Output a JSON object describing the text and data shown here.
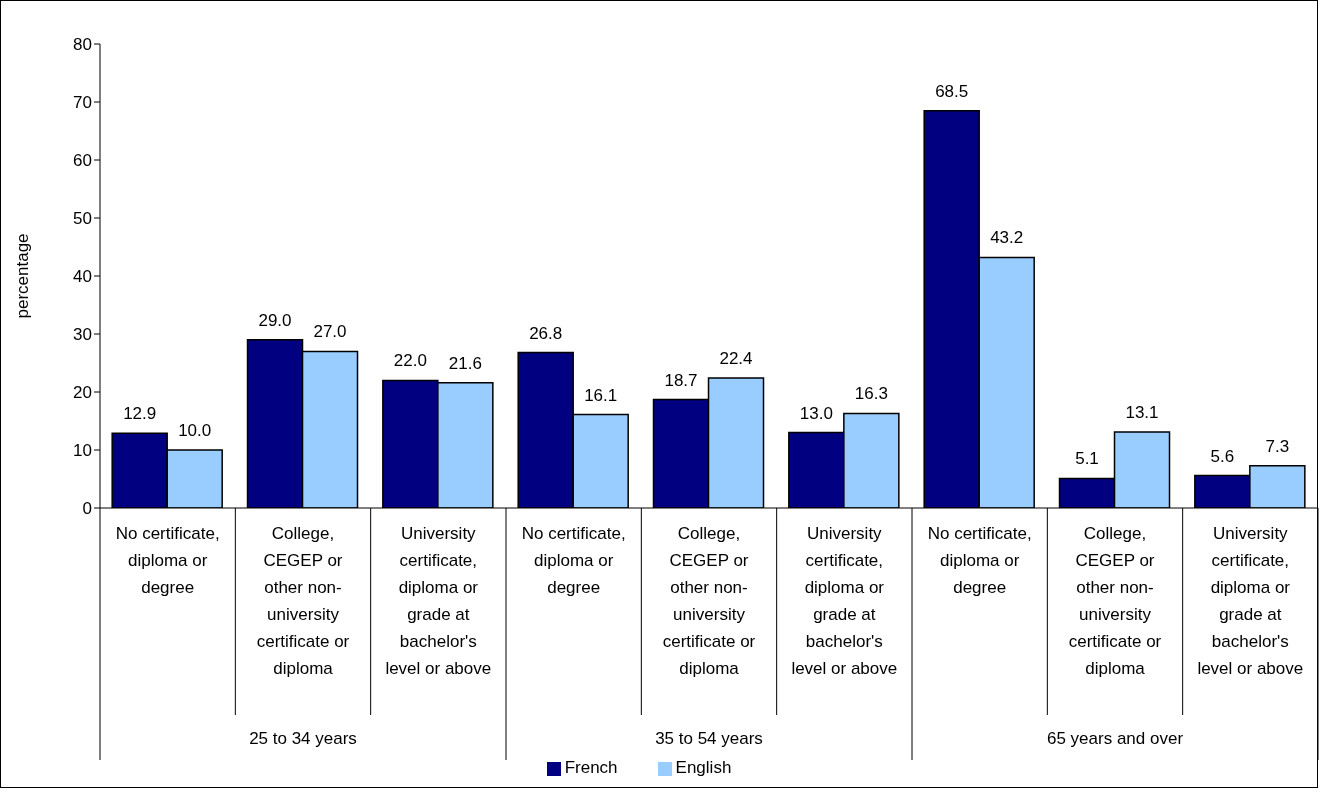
{
  "chart_data": {
    "type": "bar",
    "ylabel": "percentage",
    "categories": [
      "No certificate, diploma or degree",
      "College, CEGEP or other non-university certificate or diploma",
      "University certificate, diploma or grade at bachelor's level or above",
      "No certificate, diploma or degree",
      "College, CEGEP or other non-university certificate or diploma",
      "University certificate, diploma or grade at bachelor's level or above",
      "No certificate, diploma or degree",
      "College, CEGEP or other non-university certificate or diploma",
      "University certificate, diploma or grade at bachelor's level or above"
    ],
    "annotations": [
      "25 to 34 years",
      "35 to 54 years",
      "65 years and over"
    ],
    "series": [
      {
        "name": "French",
        "color": "#000080",
        "values": [
          12.9,
          29.0,
          22.0,
          26.8,
          18.7,
          13.0,
          68.5,
          5.1,
          5.6
        ],
        "value_labels": [
          "12.9",
          "29.0",
          "22.0",
          "26.8",
          "18.7",
          "13.0",
          "68.5",
          "5.1",
          "5.6"
        ]
      },
      {
        "name": "English",
        "color": "#99ccff",
        "values": [
          10.0,
          27.0,
          21.6,
          16.1,
          22.4,
          16.3,
          43.2,
          13.1,
          7.3
        ],
        "value_labels": [
          "10.0",
          "27.0",
          "21.6",
          "16.1",
          "22.4",
          "16.3",
          "43.2",
          "13.1",
          "7.3"
        ]
      }
    ],
    "ylim": [
      0,
      80
    ],
    "yticks": [
      0,
      10,
      20,
      30,
      40,
      50,
      60,
      70,
      80
    ],
    "grid": false,
    "legend": "bottom"
  }
}
